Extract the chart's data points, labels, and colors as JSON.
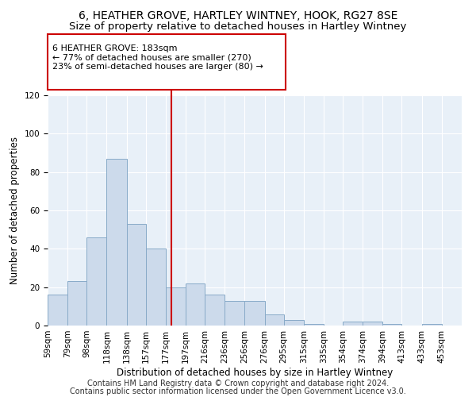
{
  "title": "6, HEATHER GROVE, HARTLEY WINTNEY, HOOK, RG27 8SE",
  "subtitle": "Size of property relative to detached houses in Hartley Wintney",
  "xlabel": "Distribution of detached houses by size in Hartley Wintney",
  "ylabel": "Number of detached properties",
  "bar_color": "#ccdaeb",
  "bar_edge_color": "#88aac8",
  "annotation_box_color": "#cc0000",
  "vline_color": "#cc0000",
  "vline_x": 183,
  "annotation_text": "6 HEATHER GROVE: 183sqm\n← 77% of detached houses are smaller (270)\n23% of semi-detached houses are larger (80) →",
  "footer1": "Contains HM Land Registry data © Crown copyright and database right 2024.",
  "footer2": "Contains public sector information licensed under the Open Government Licence v3.0.",
  "bin_edges": [
    59,
    79,
    98,
    118,
    138,
    157,
    177,
    197,
    216,
    236,
    256,
    276,
    295,
    315,
    335,
    354,
    374,
    394,
    413,
    433,
    453
  ],
  "bin_labels": [
    "59sqm",
    "79sqm",
    "98sqm",
    "118sqm",
    "138sqm",
    "157sqm",
    "177sqm",
    "197sqm",
    "216sqm",
    "236sqm",
    "256sqm",
    "276sqm",
    "295sqm",
    "315sqm",
    "335sqm",
    "354sqm",
    "374sqm",
    "394sqm",
    "413sqm",
    "433sqm",
    "453sqm"
  ],
  "counts": [
    16,
    23,
    46,
    87,
    53,
    40,
    20,
    22,
    16,
    13,
    13,
    6,
    3,
    1,
    0,
    2,
    2,
    1,
    0,
    1,
    0
  ],
  "ylim": [
    0,
    120
  ],
  "yticks": [
    0,
    20,
    40,
    60,
    80,
    100,
    120
  ],
  "background_color": "#e8f0f8",
  "fig_background": "#ffffff",
  "title_fontsize": 10,
  "subtitle_fontsize": 9.5,
  "axis_label_fontsize": 8.5,
  "tick_fontsize": 7.5,
  "annot_fontsize": 8,
  "footer_fontsize": 7
}
